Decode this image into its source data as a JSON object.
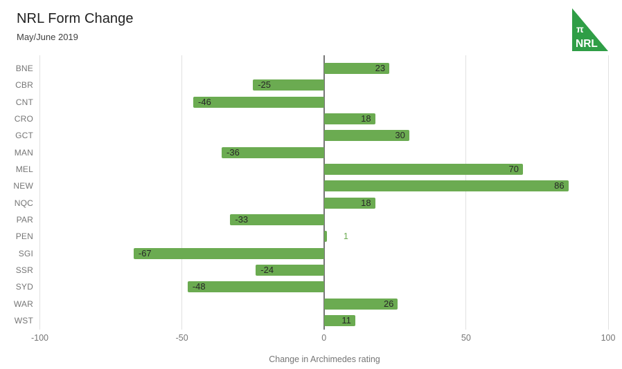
{
  "header": {
    "title": "NRL Form Change",
    "subtitle": "May/June 2019"
  },
  "logo": {
    "pi_symbol": "π",
    "text": "NRL",
    "color": "#2f9e46",
    "text_color": "#ffffff"
  },
  "chart_data": {
    "type": "bar",
    "orientation": "horizontal",
    "title": "NRL Form Change",
    "subtitle": "May/June 2019",
    "xlabel": "Change in Archimedes rating",
    "ylabel": "",
    "categories": [
      "BNE",
      "CBR",
      "CNT",
      "CRO",
      "GCT",
      "MAN",
      "MEL",
      "NEW",
      "NQC",
      "PAR",
      "PEN",
      "SGI",
      "SSR",
      "SYD",
      "WAR",
      "WST"
    ],
    "values": [
      23,
      -25,
      -46,
      18,
      30,
      -36,
      70,
      86,
      18,
      -33,
      1,
      -67,
      -24,
      -48,
      26,
      11
    ],
    "xlim": [
      -100,
      100
    ],
    "x_ticks": [
      "-100",
      "-50",
      "0",
      "50",
      "100"
    ],
    "x_tick_values": [
      -100,
      -50,
      0,
      50,
      100
    ],
    "grid": "vertical",
    "legend": "none",
    "bar_color": "#6bab51",
    "value_label_color": "#272727",
    "small_value_label_color": "#6bab51",
    "gridline_color": "#e0e0e0",
    "zeroline_color": "#757575",
    "axis_text_color": "#757575"
  }
}
